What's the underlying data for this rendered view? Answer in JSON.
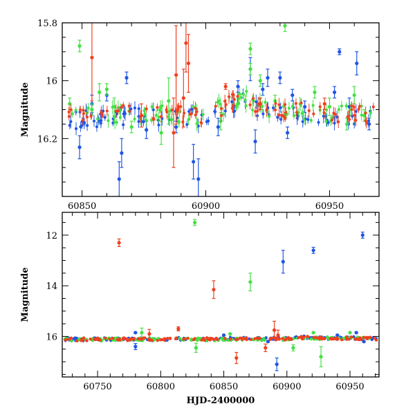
{
  "chart_data": [
    {
      "type": "scatter",
      "panel": "top",
      "title": "",
      "xlabel": "",
      "ylabel": "Magnitude",
      "xlim": [
        60842,
        60970
      ],
      "ylim": [
        16.4,
        15.8
      ],
      "y_inverted": true,
      "x_ticks": [
        60850,
        60900,
        60950
      ],
      "x_tick_labels": [
        "60850",
        "60900",
        "60950"
      ],
      "y_ticks": [
        15.8,
        16,
        16.2
      ],
      "y_tick_labels": [
        "15.8",
        "16",
        "16.2"
      ],
      "series": [
        {
          "name": "blue",
          "color": "#1f55e6",
          "baseline": [
            [
              60842,
              16.14
            ],
            [
              60870,
              16.12
            ],
            [
              60900,
              16.13
            ],
            [
              60915,
              16.07
            ],
            [
              60925,
              16.11
            ],
            [
              60970,
              16.13
            ]
          ],
          "points": [
            {
              "x": 60849,
              "y": 16.23,
              "err": 0.04
            },
            {
              "x": 60854,
              "y": 16.08,
              "err": 0.03
            },
            {
              "x": 60860,
              "y": 16.05,
              "err": 0.02
            },
            {
              "x": 60865,
              "y": 16.34,
              "err": 0.06
            },
            {
              "x": 60866,
              "y": 16.25,
              "err": 0.05
            },
            {
              "x": 60868,
              "y": 15.99,
              "err": 0.02
            },
            {
              "x": 60876,
              "y": 16.17,
              "err": 0.03
            },
            {
              "x": 60888,
              "y": 16.16,
              "err": 0.02
            },
            {
              "x": 60895,
              "y": 16.28,
              "err": 0.06
            },
            {
              "x": 60897,
              "y": 16.34,
              "err": 0.07
            },
            {
              "x": 60905,
              "y": 16.16,
              "err": 0.03
            },
            {
              "x": 60913,
              "y": 16.02,
              "err": 0.02
            },
            {
              "x": 60918,
              "y": 15.96,
              "err": 0.04
            },
            {
              "x": 60920,
              "y": 16.21,
              "err": 0.04
            },
            {
              "x": 60923,
              "y": 16.03,
              "err": 0.02
            },
            {
              "x": 60925,
              "y": 15.99,
              "err": 0.03
            },
            {
              "x": 60930,
              "y": 15.99,
              "err": 0.02
            },
            {
              "x": 60933,
              "y": 16.18,
              "err": 0.02
            },
            {
              "x": 60935,
              "y": 16.05,
              "err": 0.02
            },
            {
              "x": 60940,
              "y": 16.09,
              "err": 0.02
            },
            {
              "x": 60952,
              "y": 16.04,
              "err": 0.02
            },
            {
              "x": 60954,
              "y": 15.9,
              "err": 0.01
            },
            {
              "x": 60958,
              "y": 16.09,
              "err": 0.03
            },
            {
              "x": 60961,
              "y": 15.94,
              "err": 0.04
            },
            {
              "x": 60966,
              "y": 16.15,
              "err": 0.02
            }
          ]
        },
        {
          "name": "green",
          "color": "#44e044",
          "baseline": [
            [
              60842,
              16.13
            ],
            [
              60870,
              16.11
            ],
            [
              60900,
              16.12
            ],
            [
              60915,
              16.06
            ],
            [
              60925,
              16.1
            ],
            [
              60970,
              16.12
            ]
          ],
          "points": [
            {
              "x": 60845,
              "y": 16.08,
              "err": 0.02
            },
            {
              "x": 60849,
              "y": 15.88,
              "err": 0.02
            },
            {
              "x": 60854,
              "y": 16.1,
              "err": 0.02
            },
            {
              "x": 60857,
              "y": 16.04,
              "err": 0.03
            },
            {
              "x": 60860,
              "y": 16.03,
              "err": 0.02
            },
            {
              "x": 60863,
              "y": 16.09,
              "err": 0.03
            },
            {
              "x": 60870,
              "y": 16.16,
              "err": 0.02
            },
            {
              "x": 60882,
              "y": 16.18,
              "err": 0.04
            },
            {
              "x": 60885,
              "y": 16.07,
              "err": 0.08
            },
            {
              "x": 60906,
              "y": 16.14,
              "err": 0.03
            },
            {
              "x": 60918,
              "y": 15.89,
              "err": 0.02
            },
            {
              "x": 60918,
              "y": 15.96,
              "err": 0.02
            },
            {
              "x": 60922,
              "y": 16.0,
              "err": 0.02
            },
            {
              "x": 60928,
              "y": 16.07,
              "err": 0.02
            },
            {
              "x": 60932,
              "y": 15.81,
              "err": 0.02
            },
            {
              "x": 60944,
              "y": 16.04,
              "err": 0.02
            },
            {
              "x": 60950,
              "y": 16.09,
              "err": 0.03
            },
            {
              "x": 60957,
              "y": 16.15,
              "err": 0.02
            },
            {
              "x": 60960,
              "y": 16.05,
              "err": 0.03
            },
            {
              "x": 60964,
              "y": 16.12,
              "err": 0.02
            }
          ]
        },
        {
          "name": "red",
          "color": "#f04020",
          "baseline": [
            [
              60842,
              16.13
            ],
            [
              60870,
              16.11
            ],
            [
              60900,
              16.12
            ],
            [
              60915,
              16.06
            ],
            [
              60925,
              16.1
            ],
            [
              60970,
              16.12
            ]
          ],
          "points": [
            {
              "x": 60854,
              "y": 15.92,
              "err": 0.15
            },
            {
              "x": 60874,
              "y": 16.12,
              "err": 0.04
            },
            {
              "x": 60887,
              "y": 16.18,
              "err": 0.12
            },
            {
              "x": 60888,
              "y": 15.98,
              "err": 0.17
            },
            {
              "x": 60891,
              "y": 16.06,
              "err": 0.1
            },
            {
              "x": 60892,
              "y": 15.87,
              "err": 0.1
            },
            {
              "x": 60893,
              "y": 15.94,
              "err": 0.1
            },
            {
              "x": 60908,
              "y": 16.02,
              "err": 0.01
            },
            {
              "x": 60922,
              "y": 16.08,
              "err": 0.02
            },
            {
              "x": 60948,
              "y": 16.08,
              "err": 0.02
            }
          ]
        }
      ]
    },
    {
      "type": "scatter",
      "panel": "bottom",
      "title": "",
      "xlabel": "HJD-2400000",
      "ylabel": "Magnitude",
      "xlim": [
        60722,
        60973
      ],
      "ylim": [
        17.6,
        11.1
      ],
      "y_inverted": true,
      "x_ticks": [
        60750,
        60800,
        60850,
        60900,
        60950
      ],
      "x_tick_labels": [
        "60750",
        "60800",
        "60850",
        "60900",
        "60950"
      ],
      "y_ticks": [
        12,
        14,
        16
      ],
      "y_tick_labels": [
        "12",
        "14",
        "16"
      ],
      "series": [
        {
          "name": "blue",
          "color": "#1f55e6",
          "baseline": [
            [
              60730,
              16.12
            ],
            [
              60850,
              16.1
            ],
            [
              60900,
              16.09
            ],
            [
              60915,
              16.03
            ],
            [
              60930,
              16.06
            ],
            [
              60970,
              16.08
            ]
          ],
          "points": [
            {
              "x": 60780,
              "y": 16.4,
              "err": 0.12
            },
            {
              "x": 60780,
              "y": 15.85,
              "err": 0.02
            },
            {
              "x": 60850,
              "y": 15.95,
              "err": 0.02
            },
            {
              "x": 60885,
              "y": 16.2,
              "err": 0.03
            },
            {
              "x": 60892,
              "y": 17.1,
              "err": 0.25
            },
            {
              "x": 60897,
              "y": 13.05,
              "err": 0.45
            },
            {
              "x": 60921,
              "y": 12.6,
              "err": 0.12
            },
            {
              "x": 60940,
              "y": 15.95,
              "err": 0.02
            },
            {
              "x": 60955,
              "y": 15.85,
              "err": 0.02
            },
            {
              "x": 60960,
              "y": 12.0,
              "err": 0.12
            },
            {
              "x": 60961,
              "y": 16.2,
              "err": 0.02
            }
          ]
        },
        {
          "name": "green",
          "color": "#44e044",
          "baseline": [
            [
              60730,
              16.12
            ],
            [
              60850,
              16.11
            ],
            [
              60900,
              16.1
            ],
            [
              60915,
              16.05
            ],
            [
              60930,
              16.07
            ],
            [
              60970,
              16.09
            ]
          ],
          "points": [
            {
              "x": 60785,
              "y": 15.85,
              "err": 0.18
            },
            {
              "x": 60827,
              "y": 11.5,
              "err": 0.12
            },
            {
              "x": 60828,
              "y": 16.45,
              "err": 0.18
            },
            {
              "x": 60855,
              "y": 15.9,
              "err": 0.02
            },
            {
              "x": 60871,
              "y": 13.85,
              "err": 0.35
            },
            {
              "x": 60905,
              "y": 16.45,
              "err": 0.12
            },
            {
              "x": 60921,
              "y": 15.85,
              "err": 0.02
            },
            {
              "x": 60927,
              "y": 16.8,
              "err": 0.4
            },
            {
              "x": 60950,
              "y": 15.85,
              "err": 0.02
            }
          ]
        },
        {
          "name": "red",
          "color": "#f04020",
          "baseline": [
            [
              60730,
              16.12
            ],
            [
              60850,
              16.11
            ],
            [
              60900,
              16.1
            ],
            [
              60915,
              16.05
            ],
            [
              60930,
              16.07
            ],
            [
              60970,
              16.09
            ]
          ],
          "points": [
            {
              "x": 60767,
              "y": 12.3,
              "err": 0.15
            },
            {
              "x": 60791,
              "y": 15.9,
              "err": 0.18
            },
            {
              "x": 60814,
              "y": 15.7,
              "err": 0.08
            },
            {
              "x": 60842,
              "y": 14.15,
              "err": 0.35
            },
            {
              "x": 60860,
              "y": 16.85,
              "err": 0.22
            },
            {
              "x": 60883,
              "y": 16.45,
              "err": 0.15
            },
            {
              "x": 60890,
              "y": 15.75,
              "err": 0.35
            },
            {
              "x": 60893,
              "y": 15.95,
              "err": 0.2
            }
          ]
        }
      ]
    }
  ]
}
